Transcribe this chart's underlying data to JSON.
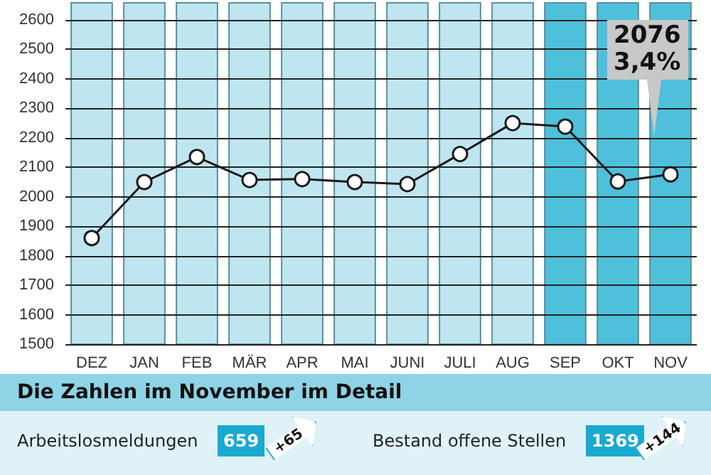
{
  "chart_data": {
    "type": "line",
    "categories": [
      "DEZ",
      "JAN",
      "FEB",
      "MÄR",
      "APR",
      "MAI",
      "JUNI",
      "JULI",
      "AUG",
      "SEP",
      "OKT",
      "NOV"
    ],
    "series": [
      {
        "color": "#1a1a1a",
        "values": [
          1860,
          2050,
          2135,
          2057,
          2060,
          2050,
          2043,
          2145,
          2250,
          2238,
          2052,
          2076
        ]
      }
    ],
    "ylim": [
      1500,
      2600
    ],
    "yticks": [
      1500,
      1600,
      1700,
      1800,
      1900,
      2000,
      2100,
      2200,
      2300,
      2400,
      2500,
      2600
    ],
    "grid": "y",
    "marker": "circle",
    "line_style": "solid",
    "bands": [
      {
        "axis": "x",
        "from": "DEZ",
        "to": "DEZ",
        "color": "#bfe6f0"
      },
      {
        "axis": "x",
        "from": "JAN",
        "to": "JAN",
        "color": "#bfe6f0"
      },
      {
        "axis": "x",
        "from": "FEB",
        "to": "FEB",
        "color": "#bfe6f0"
      },
      {
        "axis": "x",
        "from": "MÄR",
        "to": "MÄR",
        "color": "#bfe6f0"
      },
      {
        "axis": "x",
        "from": "APR",
        "to": "APR",
        "color": "#bfe6f0"
      },
      {
        "axis": "x",
        "from": "MAI",
        "to": "MAI",
        "color": "#bfe6f0"
      },
      {
        "axis": "x",
        "from": "JUNI",
        "to": "JUNI",
        "color": "#bfe6f0"
      },
      {
        "axis": "x",
        "from": "JULI",
        "to": "JULI",
        "color": "#bfe6f0"
      },
      {
        "axis": "x",
        "from": "AUG",
        "to": "AUG",
        "color": "#bfe6f0"
      },
      {
        "axis": "x",
        "from": "SEP",
        "to": "SEP",
        "color": "#4fc0dc"
      },
      {
        "axis": "x",
        "from": "OKT",
        "to": "OKT",
        "color": "#4fc0dc"
      },
      {
        "axis": "x",
        "from": "NOV",
        "to": "NOV",
        "color": "#4fc0dc"
      }
    ],
    "annotations": [
      "2076\n3,4%",
      "Die Zahlen im November im Detail",
      "Arbeitslosmeldungen",
      "659",
      "+65",
      "Bestand offene Stellen",
      "1369",
      "+144"
    ]
  }
}
